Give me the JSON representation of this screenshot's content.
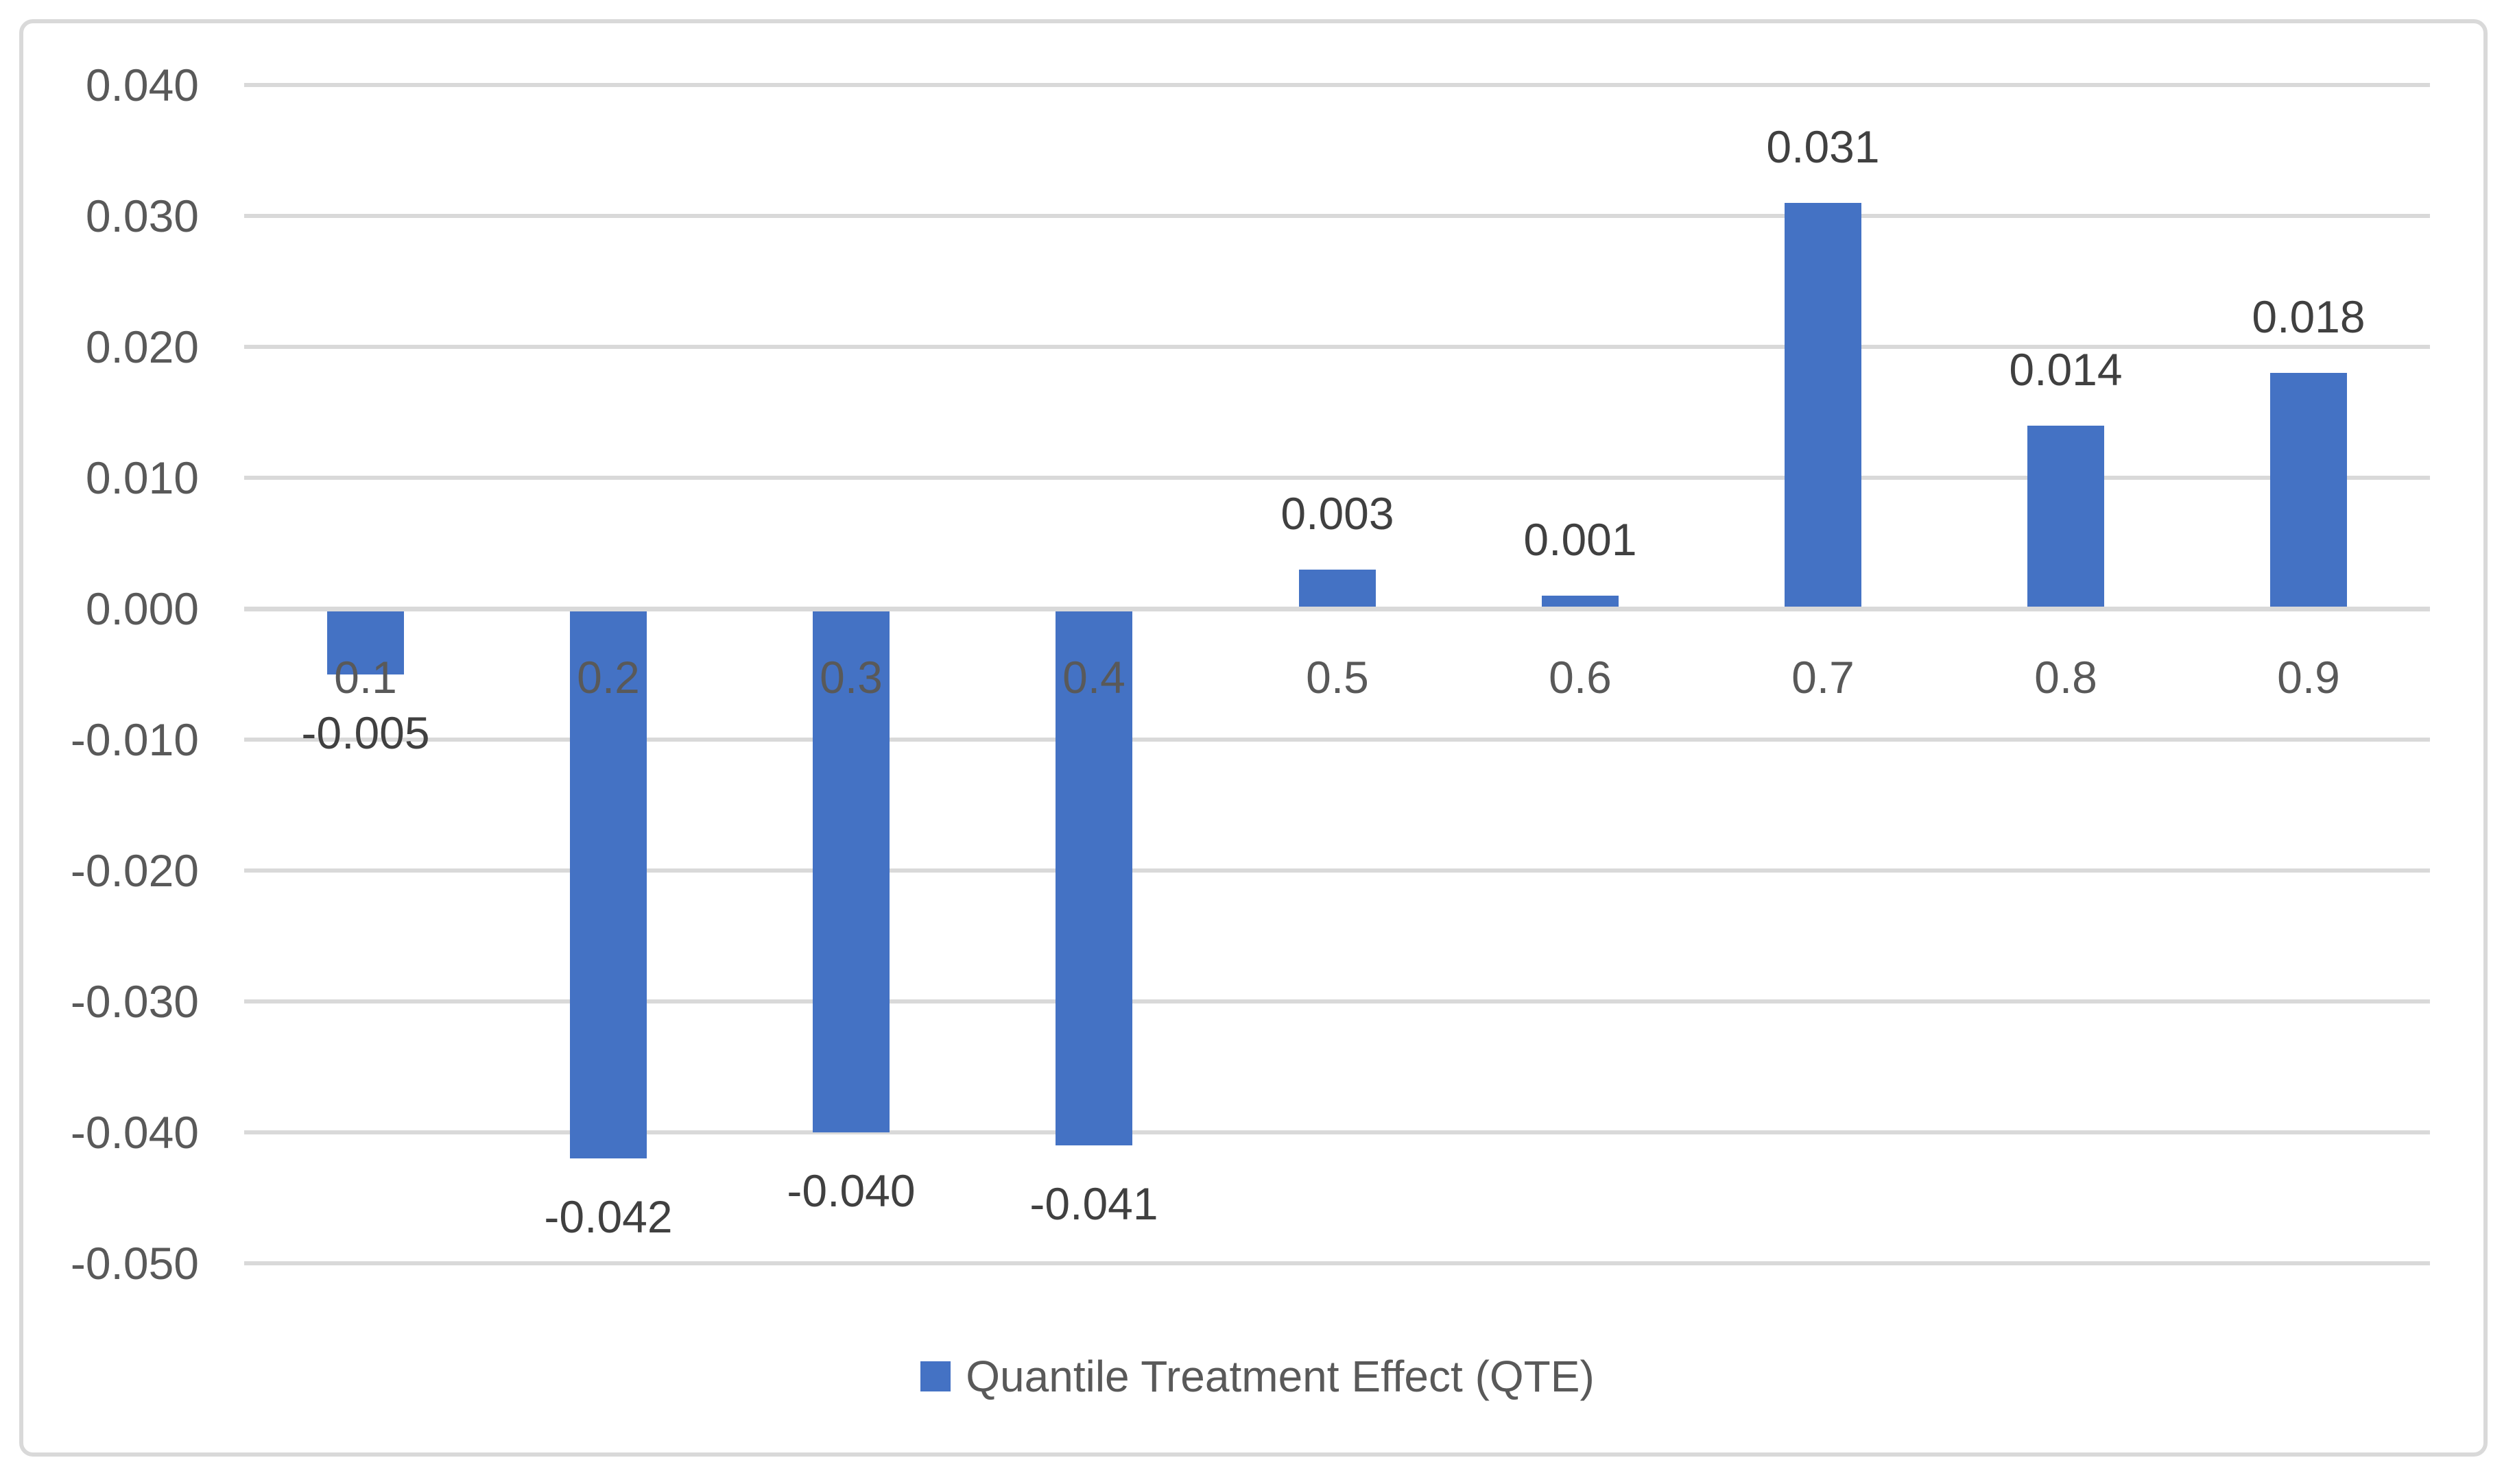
{
  "chart_data": {
    "type": "bar",
    "categories": [
      "0.1",
      "0.2",
      "0.3",
      "0.4",
      "0.5",
      "0.6",
      "0.7",
      "0.8",
      "0.9"
    ],
    "series": [
      {
        "name": "Quantile Treatment Effect (QTE)",
        "values": [
          -0.005,
          -0.042,
          -0.04,
          -0.041,
          0.003,
          0.001,
          0.031,
          0.014,
          0.018
        ],
        "data_labels": [
          "-0.005",
          "-0.042",
          "-0.040",
          "-0.041",
          "0.003",
          "0.001",
          "0.031",
          "0.014",
          "0.018"
        ]
      }
    ],
    "y_axis": {
      "min": -0.05,
      "max": 0.04,
      "number_format": "0.000",
      "ticks": [
        {
          "value": 0.04,
          "label": "0.040"
        },
        {
          "value": 0.03,
          "label": "0.030"
        },
        {
          "value": 0.02,
          "label": "0.020"
        },
        {
          "value": 0.01,
          "label": "0.010"
        },
        {
          "value": 0.0,
          "label": "0.000"
        },
        {
          "value": -0.01,
          "label": "-0.010"
        },
        {
          "value": -0.02,
          "label": "-0.020"
        },
        {
          "value": -0.03,
          "label": "-0.030"
        },
        {
          "value": -0.04,
          "label": "-0.040"
        },
        {
          "value": -0.05,
          "label": "-0.050"
        }
      ]
    },
    "grid": true,
    "legend": {
      "position": "bottom",
      "entries": [
        {
          "label": "Quantile Treatment Effect (QTE)",
          "swatch_color": "#4472C4"
        }
      ]
    },
    "colors": {
      "bar": "#4472C4",
      "gridline": "#D9D9D9",
      "frame_border": "#D9D9D9",
      "axis_text": "#595959",
      "data_label_text": "#404040",
      "background": "#FFFFFF"
    }
  }
}
